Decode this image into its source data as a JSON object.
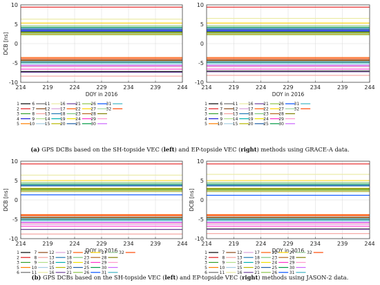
{
  "captions": [
    {
      "tag": "(a)",
      "parts": [
        {
          "text": " GPS DCBs based on the SH-topside VEC (",
          "bold": false
        },
        {
          "text": "left",
          "bold": true
        },
        {
          "text": ") and EP-topside VEC (",
          "bold": false
        },
        {
          "text": "right",
          "bold": true
        },
        {
          "text": ") methods using GRACE-A data.",
          "bold": false
        }
      ]
    },
    {
      "tag": "(b)",
      "parts": [
        {
          "text": " GPS DCBs based on the SH-topside VEC (",
          "bold": false
        },
        {
          "text": "left",
          "bold": true
        },
        {
          "text": ") and EP-topside VEC (",
          "bold": false
        },
        {
          "text": "right",
          "bold": true
        },
        {
          "text": ") methods using JASON-2 data.",
          "bold": false
        }
      ]
    }
  ],
  "colors": {
    "1": "#000000",
    "2": "#e31a1c",
    "3": "#33a02c",
    "4": "#1f1fd6",
    "5": "#ff7f00",
    "6": "#6b6b6b",
    "7": "#8b4513",
    "8": "#f4a09c",
    "9": "#b2df8a",
    "10": "#a6cee3",
    "11": "#eaeaa0",
    "12": "#d9a0d9",
    "13": "#1f78b4",
    "14": "#00b0b0",
    "15": "#b8b800",
    "16": "#6a3d9a",
    "17": "#ff5a00",
    "18": "#7bc47b",
    "19": "#f0e000",
    "20": "#1f5fa6",
    "21": "#8bc34a",
    "22": "#ffd400",
    "23": "#b5651d",
    "24": "#ff33cc",
    "25": "#009944",
    "26": "#0050ff",
    "27": "#9dd39d",
    "28": "#808000",
    "29": "#ff99cc",
    "30": "#cc66ff",
    "31": "#3cb3c3",
    "32": "#ff4500"
  },
  "chart_data": [
    {
      "type": "line",
      "panel": "a-left",
      "xlabel": "DOY in 2016",
      "ylabel": "DCB [ns]",
      "xlim": [
        214,
        244
      ],
      "ylim": [
        -10,
        10
      ],
      "xticks": [
        214,
        219,
        224,
        229,
        234,
        239,
        244
      ],
      "yticks": [
        -10,
        -5,
        0,
        5,
        10
      ],
      "x": [
        214,
        244
      ],
      "legend_prns": [
        1,
        2,
        3,
        4,
        5,
        6,
        7,
        8,
        9,
        10,
        11,
        12,
        13,
        14,
        15,
        16,
        17,
        18,
        19,
        20,
        21,
        22,
        23,
        24,
        25,
        26,
        27,
        28,
        29,
        30,
        31,
        32
      ],
      "series": [
        {
          "name": "1",
          "values": [
            -7.2,
            -7.2
          ]
        },
        {
          "name": "2",
          "values": [
            9.4,
            9.4
          ]
        },
        {
          "name": "3",
          "values": [
            2.9,
            2.9
          ]
        },
        {
          "name": "4",
          "values": [
            3.4,
            3.4
          ]
        },
        {
          "name": "5",
          "values": [
            2.4,
            2.4
          ]
        },
        {
          "name": "6",
          "values": [
            -4.8,
            -4.8
          ]
        },
        {
          "name": "7",
          "values": [
            -4.2,
            -4.2
          ]
        },
        {
          "name": "8",
          "values": [
            -8.4,
            -8.4
          ]
        },
        {
          "name": "9",
          "values": [
            2.2,
            2.2
          ]
        },
        {
          "name": "10",
          "values": [
            -5.4,
            -5.4
          ]
        },
        {
          "name": "11",
          "values": [
            6.3,
            6.3
          ]
        },
        {
          "name": "12",
          "values": [
            -6.0,
            -6.0
          ]
        },
        {
          "name": "13",
          "values": [
            3.9,
            3.9
          ]
        },
        {
          "name": "14",
          "values": [
            -5.0,
            -5.0
          ]
        },
        {
          "name": "15",
          "values": [
            2.7,
            2.7
          ]
        },
        {
          "name": "16",
          "values": [
            -7.4,
            -7.4
          ]
        },
        {
          "name": "17",
          "values": [
            -3.6,
            -3.6
          ]
        },
        {
          "name": "18",
          "values": [
            4.6,
            4.6
          ]
        },
        {
          "name": "19",
          "values": [
            3.1,
            3.1
          ]
        },
        {
          "name": "20",
          "values": [
            3.7,
            3.7
          ]
        },
        {
          "name": "21",
          "values": [
            2.5,
            2.5
          ]
        },
        {
          "name": "22",
          "values": [
            5.3,
            5.3
          ]
        },
        {
          "name": "23",
          "values": [
            -4.4,
            -4.4
          ]
        },
        {
          "name": "24",
          "values": [
            -6.6,
            -6.6
          ]
        },
        {
          "name": "25",
          "values": [
            4.2,
            4.2
          ]
        },
        {
          "name": "26",
          "values": [
            3.2,
            3.2
          ]
        },
        {
          "name": "27",
          "values": [
            2.6,
            2.6
          ]
        },
        {
          "name": "28",
          "values": [
            3.0,
            3.0
          ]
        },
        {
          "name": "29",
          "values": [
            -5.8,
            -5.8
          ]
        },
        {
          "name": "30",
          "values": [
            -5.6,
            -5.6
          ]
        },
        {
          "name": "31",
          "values": [
            -4.6,
            -4.6
          ]
        },
        {
          "name": "32",
          "values": [
            -3.9,
            -3.9
          ]
        }
      ]
    },
    {
      "type": "line",
      "panel": "a-right",
      "xlabel": "DOY in 2016",
      "ylabel": "",
      "xlim": [
        214,
        244
      ],
      "ylim": [
        -10,
        10
      ],
      "xticks": [
        214,
        219,
        224,
        229,
        234,
        239,
        244
      ],
      "yticks": [
        -10,
        -5,
        0,
        5,
        10
      ],
      "x": [
        214,
        244
      ],
      "legend_prns": [
        1,
        2,
        3,
        4,
        5,
        6,
        7,
        8,
        9,
        10,
        11,
        12,
        13,
        14,
        15,
        16,
        17,
        18,
        19,
        20,
        21,
        22,
        23,
        24,
        25,
        26,
        27,
        28,
        29,
        30,
        31,
        32
      ],
      "series": [
        {
          "name": "1",
          "values": [
            -7.1,
            -7.1
          ]
        },
        {
          "name": "2",
          "values": [
            9.4,
            9.4
          ]
        },
        {
          "name": "3",
          "values": [
            2.9,
            2.9
          ]
        },
        {
          "name": "4",
          "values": [
            3.4,
            3.4
          ]
        },
        {
          "name": "5",
          "values": [
            2.4,
            2.4
          ]
        },
        {
          "name": "6",
          "values": [
            -4.8,
            -4.8
          ]
        },
        {
          "name": "7",
          "values": [
            -4.2,
            -4.2
          ]
        },
        {
          "name": "8",
          "values": [
            -8.2,
            -8.2
          ]
        },
        {
          "name": "9",
          "values": [
            2.2,
            2.2
          ]
        },
        {
          "name": "10",
          "values": [
            -5.4,
            -5.4
          ]
        },
        {
          "name": "11",
          "values": [
            6.5,
            6.5
          ]
        },
        {
          "name": "12",
          "values": [
            -6.0,
            -6.0
          ]
        },
        {
          "name": "13",
          "values": [
            3.9,
            3.9
          ]
        },
        {
          "name": "14",
          "values": [
            -5.0,
            -5.0
          ]
        },
        {
          "name": "15",
          "values": [
            2.7,
            2.7
          ]
        },
        {
          "name": "16",
          "values": [
            -7.3,
            -7.3
          ]
        },
        {
          "name": "17",
          "values": [
            -3.6,
            -3.6
          ]
        },
        {
          "name": "18",
          "values": [
            4.6,
            4.6
          ]
        },
        {
          "name": "19",
          "values": [
            3.1,
            3.1
          ]
        },
        {
          "name": "20",
          "values": [
            3.7,
            3.7
          ]
        },
        {
          "name": "21",
          "values": [
            2.5,
            2.5
          ]
        },
        {
          "name": "22",
          "values": [
            5.3,
            5.3
          ]
        },
        {
          "name": "23",
          "values": [
            -4.4,
            -4.4
          ]
        },
        {
          "name": "24",
          "values": [
            -6.6,
            -6.6
          ]
        },
        {
          "name": "25",
          "values": [
            4.2,
            4.2
          ]
        },
        {
          "name": "26",
          "values": [
            3.2,
            3.2
          ]
        },
        {
          "name": "27",
          "values": [
            2.6,
            2.6
          ]
        },
        {
          "name": "28",
          "values": [
            3.0,
            3.0
          ]
        },
        {
          "name": "29",
          "values": [
            -5.8,
            -5.8
          ]
        },
        {
          "name": "30",
          "values": [
            -5.6,
            -5.6
          ]
        },
        {
          "name": "31",
          "values": [
            -4.6,
            -4.6
          ]
        },
        {
          "name": "32",
          "values": [
            -3.9,
            -3.9
          ]
        }
      ]
    },
    {
      "type": "line",
      "panel": "b-left",
      "xlabel": "DOY in 2016",
      "ylabel": "DCB [ns]",
      "xlim": [
        214,
        244
      ],
      "ylim": [
        -10,
        10
      ],
      "xticks": [
        214,
        219,
        224,
        229,
        234,
        239,
        244
      ],
      "yticks": [
        -10,
        -5,
        0,
        5,
        10
      ],
      "x": [
        214,
        244
      ],
      "legend_prns": [
        1,
        2,
        3,
        5,
        6,
        7,
        8,
        9,
        10,
        11,
        12,
        13,
        14,
        15,
        16,
        17,
        18,
        19,
        20,
        21,
        22,
        23,
        24,
        25,
        26,
        27,
        28,
        29,
        30,
        31,
        32
      ],
      "series": [
        {
          "name": "1",
          "values": [
            -7.6,
            -7.6
          ]
        },
        {
          "name": "2",
          "values": [
            9.3,
            9.3
          ]
        },
        {
          "name": "3",
          "values": [
            2.8,
            2.8
          ]
        },
        {
          "name": "5",
          "values": [
            2.3,
            2.3
          ]
        },
        {
          "name": "6",
          "values": [
            -5.0,
            -5.0
          ]
        },
        {
          "name": "7",
          "values": [
            -4.4,
            -4.4
          ]
        },
        {
          "name": "8",
          "values": [
            -8.8,
            -8.8
          ]
        },
        {
          "name": "9",
          "values": [
            2.1,
            2.1
          ]
        },
        {
          "name": "10",
          "values": [
            -5.5,
            -5.5
          ]
        },
        {
          "name": "11",
          "values": [
            6.4,
            6.4
          ]
        },
        {
          "name": "12",
          "values": [
            -6.3,
            -6.3
          ]
        },
        {
          "name": "13",
          "values": [
            3.8,
            3.8
          ]
        },
        {
          "name": "14",
          "values": [
            -5.2,
            -5.2
          ]
        },
        {
          "name": "15",
          "values": [
            2.6,
            2.6
          ]
        },
        {
          "name": "16",
          "values": [
            -7.6,
            -7.6
          ]
        },
        {
          "name": "17",
          "values": [
            -3.8,
            -3.8
          ]
        },
        {
          "name": "18",
          "values": [
            4.5,
            4.5
          ]
        },
        {
          "name": "19",
          "values": [
            3.0,
            3.0
          ]
        },
        {
          "name": "20",
          "values": [
            3.6,
            3.6
          ]
        },
        {
          "name": "21",
          "values": [
            2.4,
            2.4
          ]
        },
        {
          "name": "22",
          "values": [
            5.0,
            5.0
          ]
        },
        {
          "name": "23",
          "values": [
            -4.6,
            -4.6
          ]
        },
        {
          "name": "24",
          "values": [
            -6.8,
            -6.8
          ]
        },
        {
          "name": "25",
          "values": [
            4.1,
            4.1
          ]
        },
        {
          "name": "26",
          "values": [
            1.3,
            1.3
          ]
        },
        {
          "name": "27",
          "values": [
            2.5,
            2.5
          ]
        },
        {
          "name": "28",
          "values": [
            2.9,
            2.9
          ]
        },
        {
          "name": "29",
          "values": [
            -6.0,
            -6.0
          ]
        },
        {
          "name": "30",
          "values": [
            -5.8,
            -5.8
          ]
        },
        {
          "name": "31",
          "values": [
            -4.8,
            -4.8
          ]
        },
        {
          "name": "32",
          "values": [
            -4.0,
            -4.0
          ]
        }
      ]
    },
    {
      "type": "line",
      "panel": "b-right",
      "xlabel": "DOY in 2016",
      "ylabel": "DCB [ns]",
      "xlim": [
        214,
        244
      ],
      "ylim": [
        -10,
        10
      ],
      "xticks": [
        214,
        219,
        224,
        229,
        234,
        239,
        244
      ],
      "yticks": [
        -10,
        -5,
        0,
        5,
        10
      ],
      "x": [
        214,
        244
      ],
      "legend_prns": [
        1,
        2,
        3,
        5,
        6,
        7,
        8,
        9,
        10,
        11,
        12,
        13,
        14,
        15,
        16,
        17,
        18,
        19,
        20,
        21,
        22,
        23,
        24,
        25,
        26,
        27,
        28,
        29,
        30,
        31,
        32
      ],
      "series": [
        {
          "name": "1",
          "values": [
            -7.5,
            -7.5
          ]
        },
        {
          "name": "2",
          "values": [
            9.3,
            9.3
          ]
        },
        {
          "name": "3",
          "values": [
            2.8,
            2.8
          ]
        },
        {
          "name": "5",
          "values": [
            2.3,
            2.3
          ]
        },
        {
          "name": "6",
          "values": [
            -5.0,
            -5.0
          ]
        },
        {
          "name": "7",
          "values": [
            -4.4,
            -4.4
          ]
        },
        {
          "name": "8",
          "values": [
            -8.7,
            -8.7
          ]
        },
        {
          "name": "9",
          "values": [
            2.1,
            2.1
          ]
        },
        {
          "name": "10",
          "values": [
            -5.5,
            -5.5
          ]
        },
        {
          "name": "11",
          "values": [
            6.6,
            6.6
          ]
        },
        {
          "name": "12",
          "values": [
            -6.3,
            -6.3
          ]
        },
        {
          "name": "13",
          "values": [
            3.8,
            3.8
          ]
        },
        {
          "name": "14",
          "values": [
            -5.2,
            -5.2
          ]
        },
        {
          "name": "15",
          "values": [
            2.6,
            2.6
          ]
        },
        {
          "name": "16",
          "values": [
            -7.6,
            -7.6
          ]
        },
        {
          "name": "17",
          "values": [
            -3.8,
            -3.8
          ]
        },
        {
          "name": "18",
          "values": [
            4.5,
            4.5
          ]
        },
        {
          "name": "19",
          "values": [
            3.0,
            3.0
          ]
        },
        {
          "name": "20",
          "values": [
            3.6,
            3.6
          ]
        },
        {
          "name": "21",
          "values": [
            2.4,
            2.4
          ]
        },
        {
          "name": "22",
          "values": [
            5.0,
            5.0
          ]
        },
        {
          "name": "23",
          "values": [
            -4.6,
            -4.6
          ]
        },
        {
          "name": "24",
          "values": [
            -6.8,
            -6.8
          ]
        },
        {
          "name": "25",
          "values": [
            4.1,
            4.1
          ]
        },
        {
          "name": "26",
          "values": [
            1.2,
            1.2
          ]
        },
        {
          "name": "27",
          "values": [
            2.5,
            2.5
          ]
        },
        {
          "name": "28",
          "values": [
            2.9,
            2.9
          ]
        },
        {
          "name": "29",
          "values": [
            -6.0,
            -6.0
          ]
        },
        {
          "name": "30",
          "values": [
            -5.8,
            -5.8
          ]
        },
        {
          "name": "31",
          "values": [
            -4.8,
            -4.8
          ]
        },
        {
          "name": "32",
          "values": [
            -4.0,
            -4.0
          ]
        }
      ]
    }
  ]
}
